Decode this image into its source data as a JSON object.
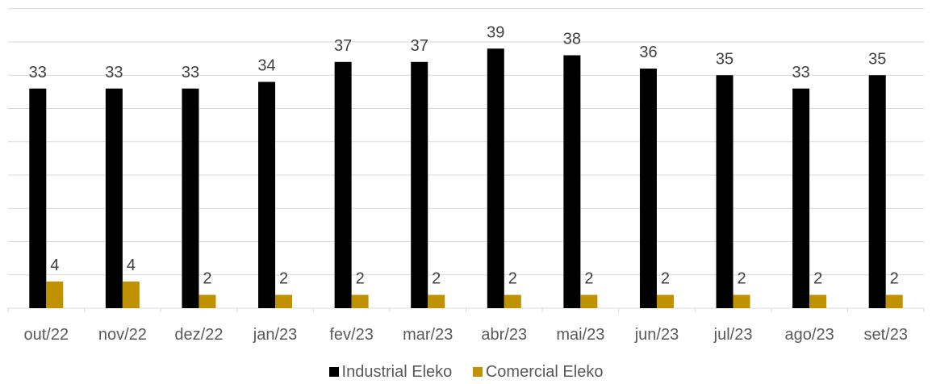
{
  "chart_data": {
    "type": "bar",
    "categories": [
      "out/22",
      "nov/22",
      "dez/22",
      "jan/23",
      "fev/23",
      "mar/23",
      "abr/23",
      "mai/23",
      "jun/23",
      "jul/23",
      "ago/23",
      "set/23"
    ],
    "series": [
      {
        "name": "Industrial Eleko",
        "color": "#000000",
        "values": [
          33,
          33,
          33,
          34,
          37,
          37,
          39,
          38,
          36,
          35,
          33,
          35
        ]
      },
      {
        "name": "Comercial Eleko",
        "color": "#C09200",
        "values": [
          4,
          4,
          2,
          2,
          2,
          2,
          2,
          2,
          2,
          2,
          2,
          2
        ]
      }
    ],
    "ylim": [
      0,
      45
    ],
    "grid": true,
    "legend_position": "bottom"
  }
}
